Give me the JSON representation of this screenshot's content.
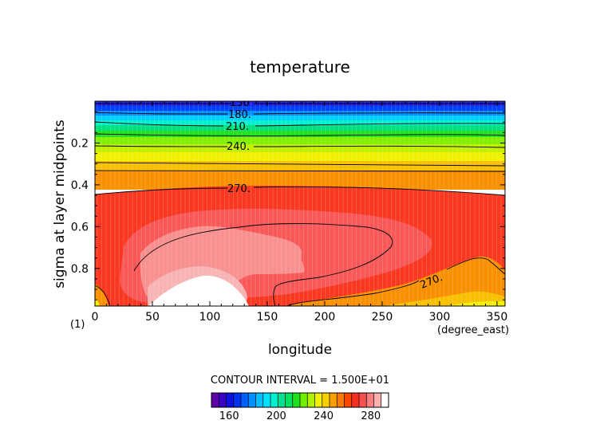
{
  "chart_data": {
    "type": "heatmap",
    "subtype": "filled-contour",
    "title": "temperature",
    "xlabel": "longitude",
    "ylabel": "sigma at layer midpoints",
    "x_unit": "(degree_east)",
    "panel_label": "(1)",
    "xlim": [
      0,
      357
    ],
    "ylim": [
      0.98,
      0.0
    ],
    "y_reversed": true,
    "x_ticks": [
      0,
      50,
      100,
      150,
      200,
      250,
      300,
      350
    ],
    "y_ticks": [
      0.2,
      0.4,
      0.6,
      0.8
    ],
    "y_tick_labels": [
      "0.2",
      "0.4",
      "0.6",
      "0.8"
    ],
    "contour_interval_text": "CONTOUR INTERVAL = 1.500E+01",
    "contour_levels_labeled": [
      "150",
      "180.",
      "210.",
      "240.",
      "270.",
      "270."
    ],
    "colorbar": {
      "min": 145,
      "max": 295,
      "step": 5,
      "tick_values": [
        160,
        200,
        240,
        280
      ],
      "colors": [
        "#5c00a8",
        "#3a00c4",
        "#1010e0",
        "#0030f0",
        "#0060ff",
        "#0090ff",
        "#00c0ff",
        "#00e0ff",
        "#00f0d0",
        "#00e090",
        "#00e060",
        "#20e020",
        "#70f000",
        "#b0f000",
        "#f0f000",
        "#f8d000",
        "#f8a000",
        "#f87800",
        "#f84800",
        "#f83020",
        "#f85050",
        "#f88080",
        "#f8b0b0",
        "#ffffff"
      ]
    },
    "grid": false
  }
}
